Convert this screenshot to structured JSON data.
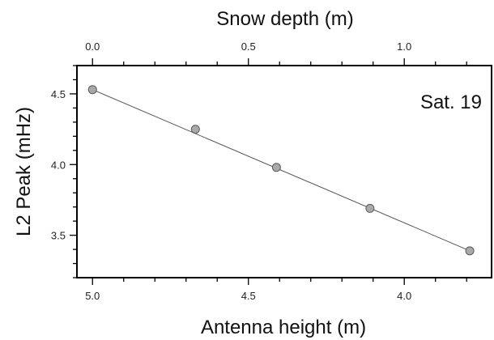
{
  "chart_data": {
    "type": "scatter",
    "annotation": "Sat. 19",
    "xlabel": "Antenna height (m)",
    "x_top_label": "Snow depth (m)",
    "ylabel": "L2 Peak (mHz)",
    "xlim": [
      5.05,
      3.72
    ],
    "ylim": [
      3.2,
      4.7
    ],
    "x_ticks": [
      "5.0",
      "4.5",
      "4.0"
    ],
    "x_top_ticks": [
      "0.0",
      "0.5",
      "1.0"
    ],
    "y_ticks": [
      "3.5",
      "4.0",
      "4.5"
    ],
    "grid": false,
    "fit_line": true,
    "series": [
      {
        "x": [
          5.0,
          4.67,
          4.41,
          4.11,
          3.79
        ],
        "y": [
          4.53,
          4.25,
          3.98,
          3.69,
          3.39
        ]
      }
    ],
    "colors": {
      "marker_fill": "#a9a9a9",
      "marker_stroke": "#5a5a5a",
      "line": "#555555"
    }
  }
}
